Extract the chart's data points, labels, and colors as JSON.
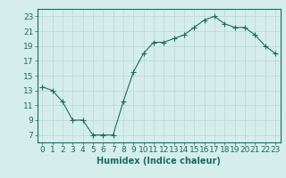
{
  "x": [
    0,
    1,
    2,
    3,
    4,
    5,
    6,
    7,
    8,
    9,
    10,
    11,
    12,
    13,
    14,
    15,
    16,
    17,
    18,
    19,
    20,
    21,
    22,
    23
  ],
  "y": [
    13.5,
    13.0,
    11.5,
    9.0,
    9.0,
    7.0,
    7.0,
    7.0,
    11.5,
    15.5,
    18.0,
    19.5,
    19.5,
    20.0,
    20.5,
    21.5,
    22.5,
    23.0,
    22.0,
    21.5,
    21.5,
    20.5,
    19.0,
    18.0
  ],
  "line_color": "#1a6b60",
  "marker": "+",
  "marker_size": 4,
  "bg_color": "#d5eeeb",
  "grid_color": "#b8d8d4",
  "xlabel": "Humidex (Indice chaleur)",
  "ylim": [
    6,
    24
  ],
  "xlim": [
    -0.5,
    23.5
  ],
  "yticks": [
    7,
    9,
    11,
    13,
    15,
    17,
    19,
    21,
    23
  ],
  "xticks": [
    0,
    1,
    2,
    3,
    4,
    5,
    6,
    7,
    8,
    9,
    10,
    11,
    12,
    13,
    14,
    15,
    16,
    17,
    18,
    19,
    20,
    21,
    22,
    23
  ],
  "tick_color": "#1a6b60",
  "label_fontsize": 7,
  "tick_fontsize": 6.5
}
